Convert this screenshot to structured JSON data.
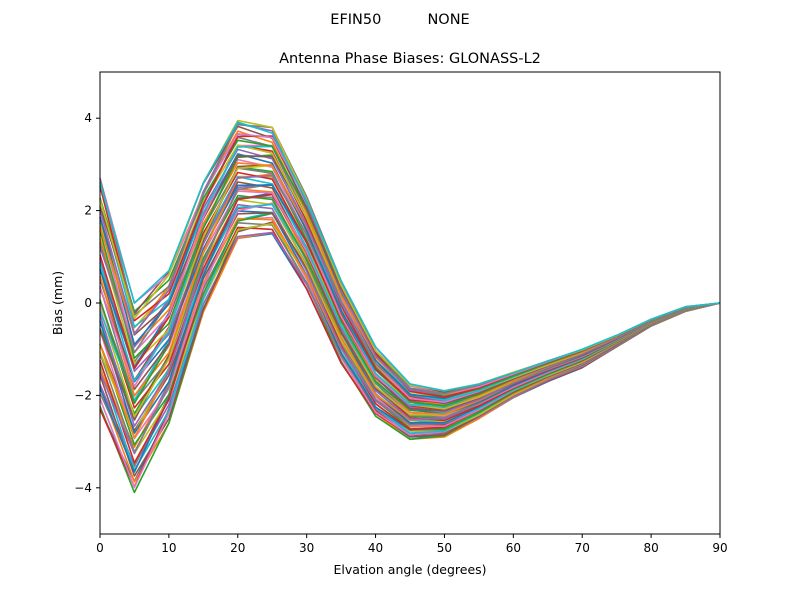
{
  "chart_data": {
    "type": "line",
    "suptitle": "EFIN50          NONE",
    "title": "Antenna Phase Biases: GLONASS-L2",
    "xlabel": "Elvation angle (degrees)",
    "ylabel": "Bias (mm)",
    "xlim": [
      0,
      90
    ],
    "ylim": [
      -5,
      5
    ],
    "x": [
      0,
      5,
      10,
      15,
      20,
      25,
      30,
      35,
      40,
      45,
      50,
      55,
      60,
      65,
      70,
      75,
      80,
      85,
      90
    ],
    "xticks": [
      "0",
      "10",
      "20",
      "30",
      "40",
      "50",
      "60",
      "70",
      "80",
      "90"
    ],
    "yticks": [
      "−4",
      "−2",
      "0",
      "2",
      "4"
    ],
    "grid": false,
    "legend": "none",
    "upper_envelope": [
      2.7,
      0.0,
      0.7,
      2.6,
      3.95,
      3.8,
      2.3,
      0.5,
      -0.95,
      -1.75,
      -1.9,
      -1.75,
      -1.5,
      -1.25,
      -1.0,
      -0.7,
      -0.35,
      -0.08,
      0.0
    ],
    "lower_envelope": [
      -2.3,
      -4.1,
      -2.6,
      -0.2,
      1.4,
      1.5,
      0.3,
      -1.3,
      -2.45,
      -2.95,
      -2.9,
      -2.5,
      -2.05,
      -1.7,
      -1.4,
      -0.95,
      -0.5,
      -0.18,
      0.0
    ],
    "series_count": 60,
    "colors": [
      "#1f77b4",
      "#ff7f0e",
      "#2ca02c",
      "#d62728",
      "#9467bd",
      "#8c564b",
      "#e377c2",
      "#7f7f7f",
      "#bcbd22",
      "#17becf"
    ]
  }
}
